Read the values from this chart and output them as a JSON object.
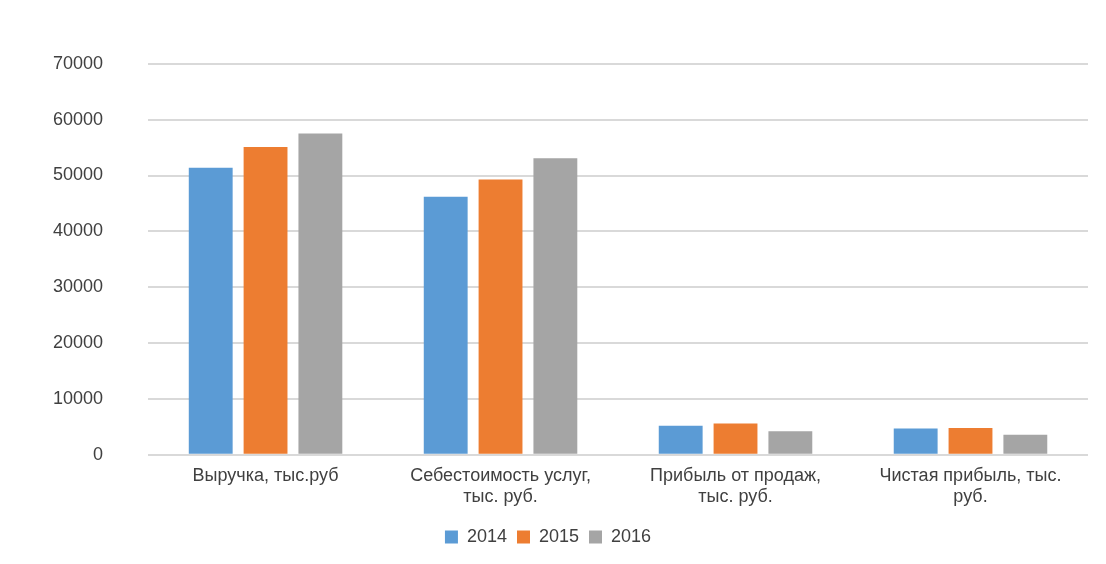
{
  "chart_data": {
    "type": "bar",
    "categories": [
      [
        "Выручка, тыс.руб"
      ],
      [
        "Себестоимость услуг,",
        "тыс. руб."
      ],
      [
        "Прибыль от продаж,",
        "тыс. руб."
      ],
      [
        "Чистая прибыль, тыс.",
        "руб."
      ]
    ],
    "series": [
      {
        "name": "2014",
        "color": "#5b9bd5",
        "values": [
          51400,
          46200,
          5200,
          4700
        ]
      },
      {
        "name": "2015",
        "color": "#ed7d31",
        "values": [
          55100,
          49300,
          5600,
          4800
        ]
      },
      {
        "name": "2016",
        "color": "#a5a5a5",
        "values": [
          57500,
          53100,
          4200,
          3600
        ]
      }
    ],
    "ylim": [
      0,
      70000
    ],
    "yticks": [
      0,
      10000,
      20000,
      30000,
      40000,
      50000,
      60000,
      70000
    ],
    "grid": "y",
    "legend": "bottom"
  }
}
